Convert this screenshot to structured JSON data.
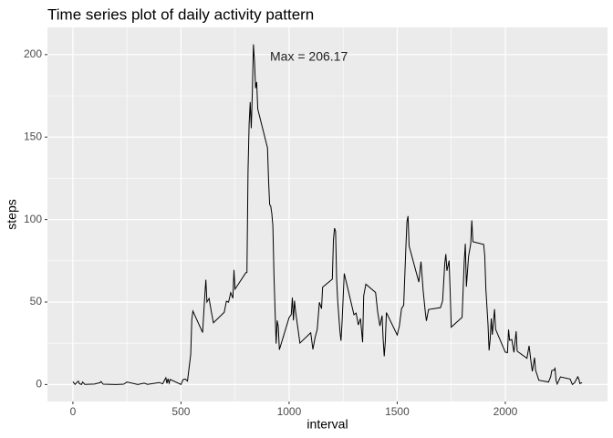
{
  "chart_data": {
    "type": "line",
    "title": "Time series plot of daily activity pattern",
    "x_label": "interval",
    "y_label": "steps",
    "annotation": "Max = 206.17",
    "color": "#000000",
    "grid": true,
    "xlim": [
      -117.75,
      2472.75
    ],
    "ylim": [
      -10.3,
      216.5
    ],
    "xticks": [
      0,
      500,
      1000,
      1500,
      2000
    ],
    "yticks": [
      0,
      50,
      100,
      150,
      200
    ],
    "x": [
      0,
      10,
      25,
      30,
      40,
      45,
      55,
      100,
      125,
      130,
      140,
      200,
      235,
      250,
      300,
      330,
      345,
      400,
      415,
      430,
      435,
      440,
      445,
      450,
      500,
      505,
      510,
      520,
      530,
      545,
      550,
      555,
      600,
      610,
      615,
      620,
      630,
      640,
      650,
      700,
      710,
      720,
      730,
      740,
      745,
      750,
      800,
      805,
      810,
      815,
      820,
      825,
      830,
      835,
      840,
      845,
      850,
      855,
      900,
      905,
      910,
      915,
      920,
      925,
      930,
      935,
      940,
      945,
      950,
      955,
      1000,
      1010,
      1015,
      1020,
      1025,
      1030,
      1040,
      1050,
      1100,
      1110,
      1120,
      1130,
      1140,
      1150,
      1155,
      1200,
      1205,
      1210,
      1215,
      1220,
      1225,
      1235,
      1240,
      1245,
      1255,
      1300,
      1310,
      1320,
      1330,
      1340,
      1345,
      1355,
      1400,
      1410,
      1420,
      1430,
      1435,
      1440,
      1445,
      1450,
      1500,
      1510,
      1520,
      1530,
      1540,
      1545,
      1550,
      1555,
      1600,
      1610,
      1620,
      1630,
      1635,
      1645,
      1700,
      1710,
      1720,
      1725,
      1730,
      1740,
      1745,
      1750,
      1800,
      1810,
      1815,
      1820,
      1830,
      1840,
      1845,
      1850,
      1900,
      1905,
      1910,
      1920,
      1925,
      1930,
      1935,
      1940,
      1950,
      1955,
      2000,
      2010,
      2015,
      2020,
      2030,
      2040,
      2050,
      2055,
      2100,
      2110,
      2120,
      2125,
      2135,
      2140,
      2155,
      2200,
      2210,
      2215,
      2225,
      2230,
      2235,
      2240,
      2255,
      2300,
      2310,
      2320,
      2335,
      2340,
      2345,
      2355
    ],
    "values": [
      1.7,
      0.1,
      2.1,
      0.5,
      0,
      1.5,
      0.1,
      0.3,
      1.1,
      1.8,
      0.2,
      0,
      0.2,
      1.5,
      0,
      0.8,
      0.1,
      1.2,
      0.4,
      4.1,
      0.7,
      3.5,
      0.8,
      3.1,
      0,
      1.6,
      3,
      3.3,
      2.1,
      18.3,
      39.5,
      44.5,
      31.5,
      53.8,
      63.5,
      50,
      52.2,
      44.3,
      37.4,
      43.8,
      50.5,
      49.9,
      55.7,
      52.3,
      69.5,
      57.8,
      67.8,
      68,
      129.4,
      157.5,
      171.2,
      155.4,
      177.3,
      206.17,
      195.9,
      179.6,
      183.4,
      167,
      143.5,
      124,
      109.1,
      108.1,
      103.7,
      96,
      66.2,
      45.2,
      24.8,
      38.8,
      35,
      21.1,
      40.6,
      42.4,
      52.7,
      38.9,
      50.8,
      44.3,
      34.7,
      25.1,
      31.4,
      21.3,
      28.4,
      33.3,
      49.8,
      46,
      59,
      63.9,
      87.6,
      94.8,
      92.8,
      63.4,
      50.2,
      32.4,
      26.5,
      37.7,
      67.3,
      42.3,
      43.3,
      36.1,
      40,
      25.6,
      53.8,
      60.8,
      55.8,
      43.6,
      35.5,
      41.8,
      27.5,
      17.1,
      26.1,
      43.6,
      30,
      35.5,
      46,
      48.1,
      82.9,
      98.7,
      102.1,
      84,
      62.1,
      74.5,
      56.9,
      43.9,
      38.6,
      45.5,
      46.6,
      50.7,
      73.4,
      79.1,
      68.9,
      75.1,
      56.5,
      34.8,
      40.7,
      74.7,
      85.3,
      59.3,
      77.7,
      85.3,
      99.5,
      86.6,
      84.9,
      77.8,
      58,
      36.3,
      20.7,
      27.4,
      40,
      30.2,
      45.7,
      33.5,
      19.6,
      19.3,
      33.3,
      26.8,
      27.3,
      19.5,
      32.3,
      20.2,
      15.9,
      23.5,
      12.5,
      8,
      16.3,
      8.7,
      2.6,
      1.5,
      4.8,
      8.5,
      8.7,
      9.8,
      2.2,
      0.3,
      4.6,
      3.3,
      0,
      1,
      4.7,
      3.3,
      0.6,
      1.1
    ]
  }
}
